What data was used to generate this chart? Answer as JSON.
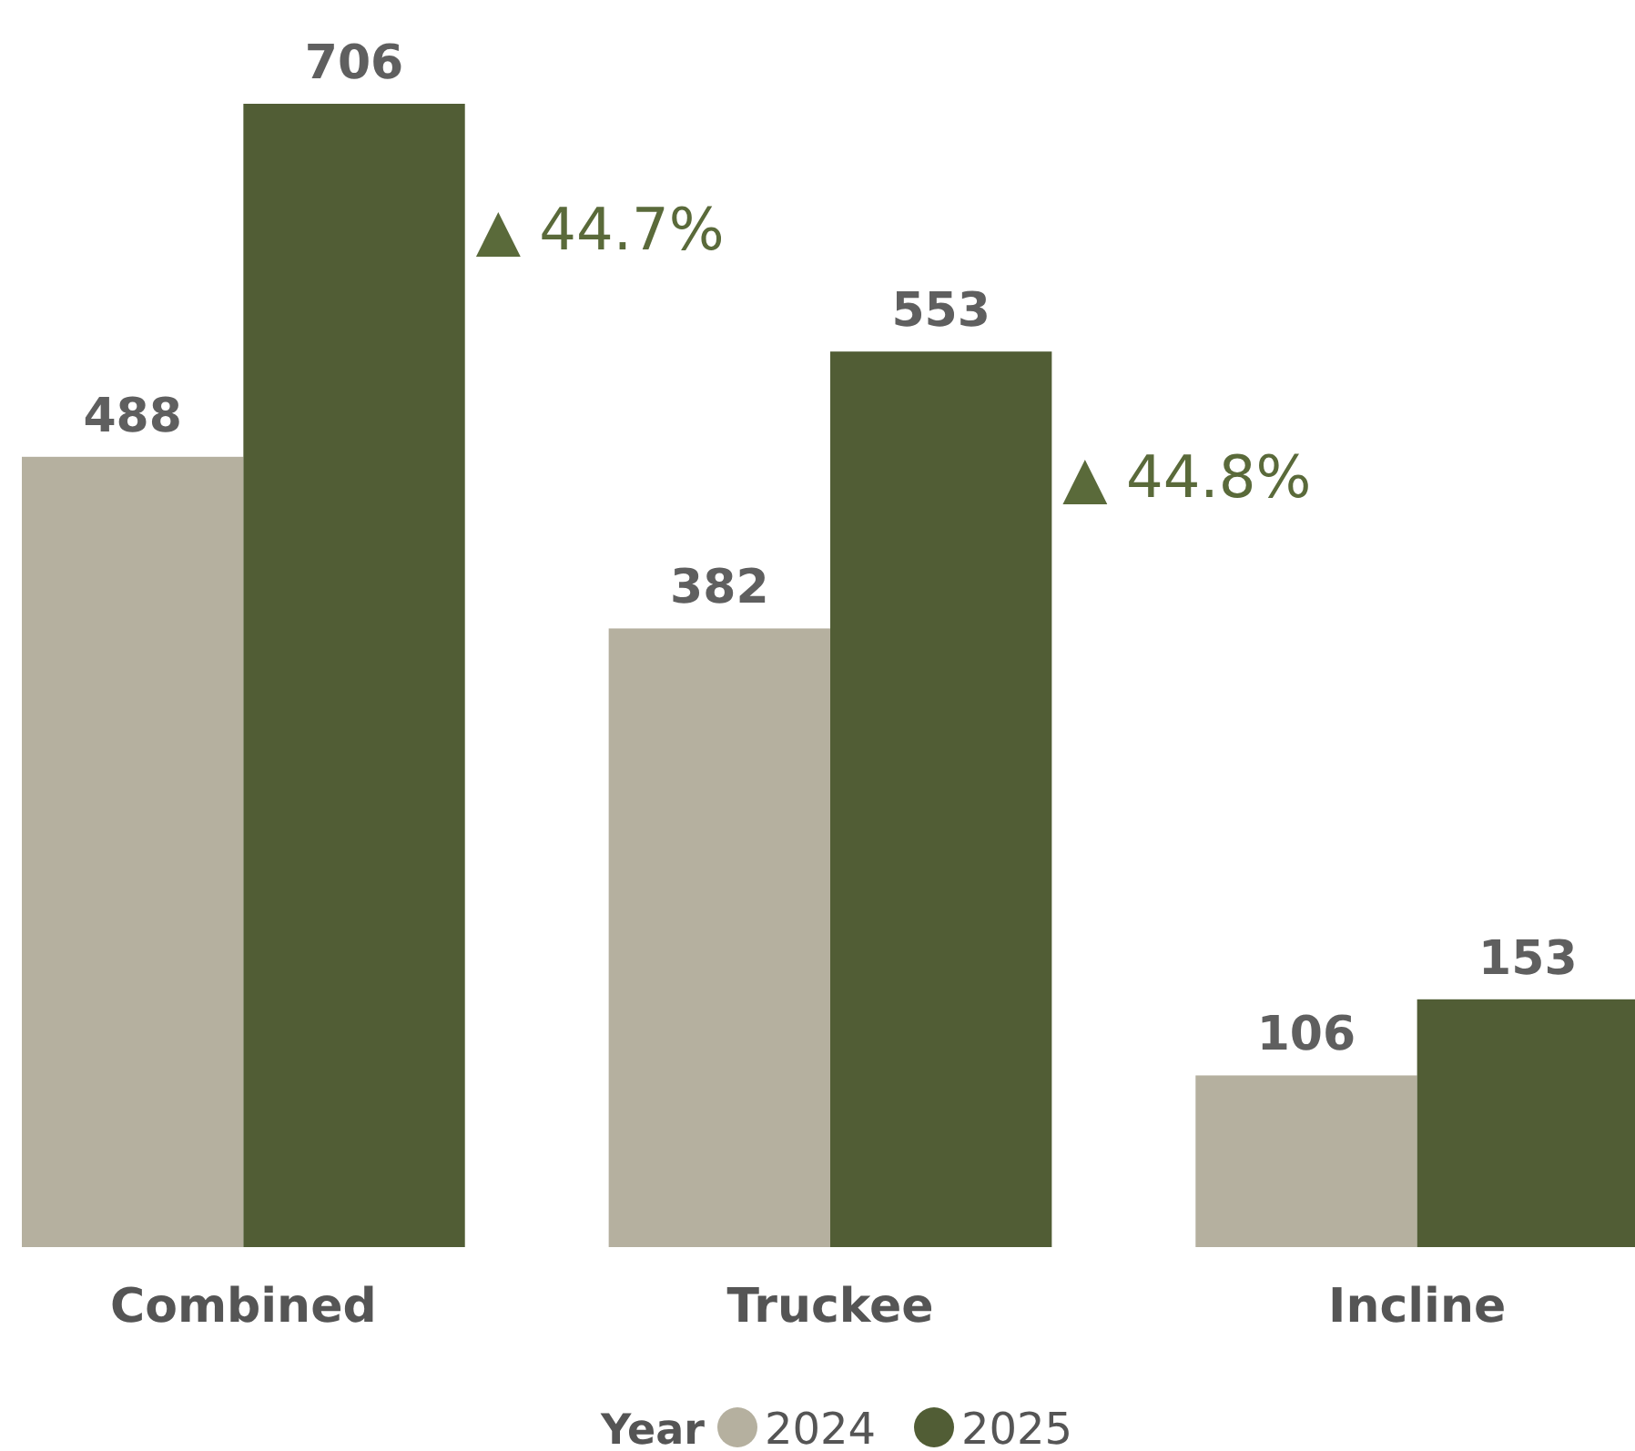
{
  "chart_data": {
    "type": "bar",
    "categories": [
      "Combined",
      "Truckee",
      "Incline"
    ],
    "series": [
      {
        "name": "2024",
        "color": "#b5b09f",
        "values": [
          488,
          382,
          106
        ]
      },
      {
        "name": "2025",
        "color": "#515d35",
        "values": [
          706,
          553,
          153
        ]
      }
    ],
    "data_labels": true,
    "legend": "bottom",
    "legend_title": "Year",
    "annotations": [
      "▲ 44.7%",
      "▲ 44.8%"
    ]
  }
}
